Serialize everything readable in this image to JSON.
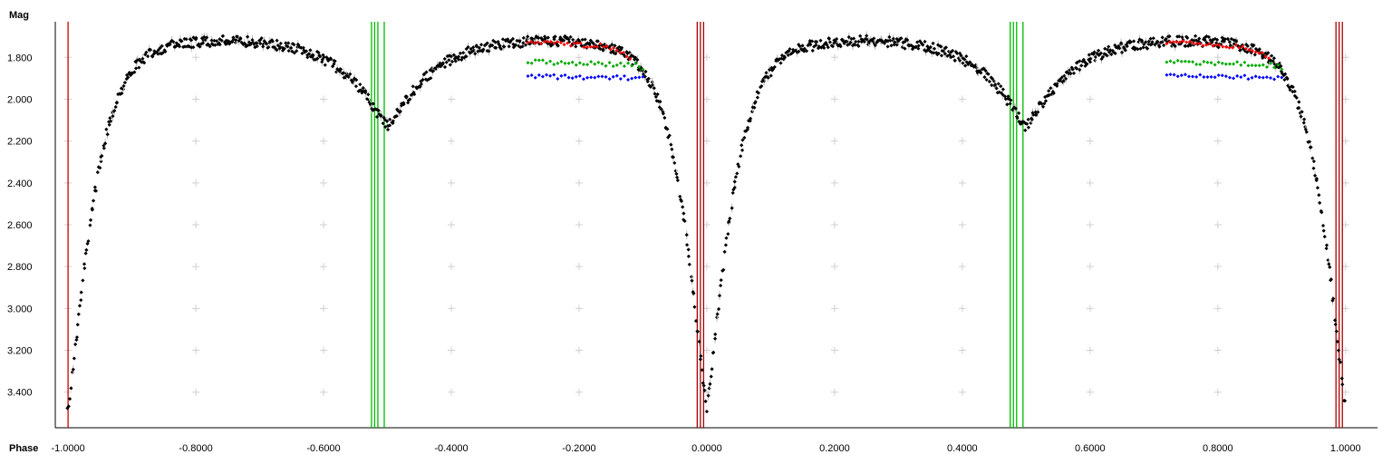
{
  "chart_data": {
    "type": "scatter",
    "title": "",
    "xlabel": "Phase",
    "ylabel": "Mag",
    "xlim": [
      -1.02,
      1.05
    ],
    "ylim": [
      3.57,
      1.63
    ],
    "y_inverted": true,
    "grid": "light-gray cross markers at major ticks",
    "x_ticks": [
      -1.0,
      -0.8,
      -0.6,
      -0.4,
      -0.2,
      0.0,
      0.2,
      0.4,
      0.6,
      0.8,
      1.0
    ],
    "x_tick_labels": [
      "-1.0000",
      "-0.8000",
      "-0.6000",
      "-0.4000",
      "-0.2000",
      "0.0000",
      "0.2000",
      "0.4000",
      "0.6000",
      "0.8000",
      "1.0000"
    ],
    "y_ticks": [
      1.8,
      2.0,
      2.2,
      2.4,
      2.6,
      2.8,
      3.0,
      3.2,
      3.4
    ],
    "y_tick_labels": [
      "1.800",
      "2.000",
      "2.200",
      "2.400",
      "2.600",
      "2.800",
      "3.000",
      "3.200",
      "3.400"
    ],
    "light_curve_model": {
      "primary_minimum_phase": 0.0,
      "secondary_minimum_phase": 0.5,
      "max_mag": 1.72,
      "primary_min_mag": 3.42,
      "secondary_min_mag": 2.08,
      "period_repeats": 2
    },
    "series": [
      {
        "color": "#000000",
        "marker": "diamond",
        "points_description": "dense light curve over phase -1.0 to 1.0"
      },
      {
        "color": "#ff0000",
        "marker": "diamond",
        "x_ranges": [
          [
            -0.28,
            -0.12
          ],
          [
            0.72,
            0.88
          ]
        ],
        "mag_at_start": 1.72,
        "mag_at_end": 1.76
      },
      {
        "color": "#00aa00",
        "marker": "diamond",
        "x_ranges": [
          [
            -0.28,
            -0.1
          ],
          [
            0.72,
            0.9
          ]
        ],
        "mag_at_start": 1.82,
        "mag_at_end": 1.84
      },
      {
        "color": "#0000ff",
        "marker": "diamond",
        "x_ranges": [
          [
            -0.28,
            -0.1
          ],
          [
            0.72,
            0.9
          ]
        ],
        "mag_at_start": 1.89,
        "mag_at_end": 1.9
      }
    ],
    "vertical_lines": [
      {
        "color": "#cc0000",
        "x": [
          -1.0
        ]
      },
      {
        "color": "#00bb00",
        "x": [
          -0.525,
          -0.52,
          -0.515,
          -0.505
        ]
      },
      {
        "color": "#aa0000",
        "x": [
          -0.015,
          -0.01,
          -0.005
        ]
      },
      {
        "color": "#00bb00",
        "x": [
          0.475,
          0.48,
          0.485,
          0.495
        ]
      },
      {
        "color": "#aa0000",
        "x": [
          0.985,
          0.99,
          0.995
        ]
      }
    ]
  }
}
